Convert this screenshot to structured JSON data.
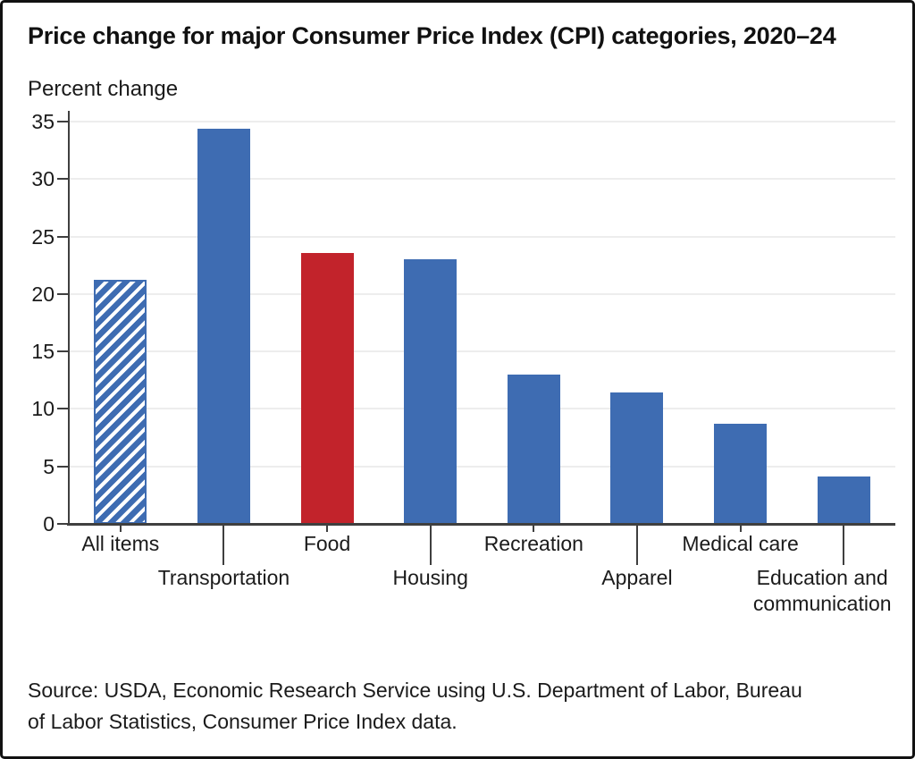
{
  "title": "Price change for major Consumer Price Index (CPI) categories, 2020–24",
  "y_axis_title": "Percent change",
  "source_lines": [
    "Source: USDA, Economic Research Service using U.S. Department of Labor, Bureau",
    "of Labor Statistics, Consumer Price Index data."
  ],
  "colors": {
    "bar_blue": "#3E6CB2",
    "bar_red": "#C2232B",
    "axis": "#3f3f3f",
    "gridline": "#ededed",
    "text": "#1b1b1b",
    "hatch_background": "#ffffff"
  },
  "chart_data": {
    "type": "bar",
    "title": "Price change for major Consumer Price Index (CPI) categories, 2020–24",
    "xlabel": "",
    "ylabel": "Percent change",
    "ylim": [
      0,
      35
    ],
    "yticks": [
      0,
      5,
      10,
      15,
      20,
      25,
      30,
      35
    ],
    "grid": true,
    "legend": "none",
    "categories": [
      "All items",
      "Transportation",
      "Food",
      "Housing",
      "Recreation",
      "Apparel",
      "Medical care",
      "Education and communication"
    ],
    "values": [
      21.2,
      34.4,
      23.6,
      23.0,
      13.0,
      11.4,
      8.7,
      4.1
    ],
    "bar_styles": [
      "hatch-blue",
      "blue",
      "red",
      "blue",
      "blue",
      "blue",
      "blue",
      "blue"
    ],
    "label_rows": [
      1,
      2,
      1,
      2,
      1,
      2,
      1,
      2
    ]
  }
}
